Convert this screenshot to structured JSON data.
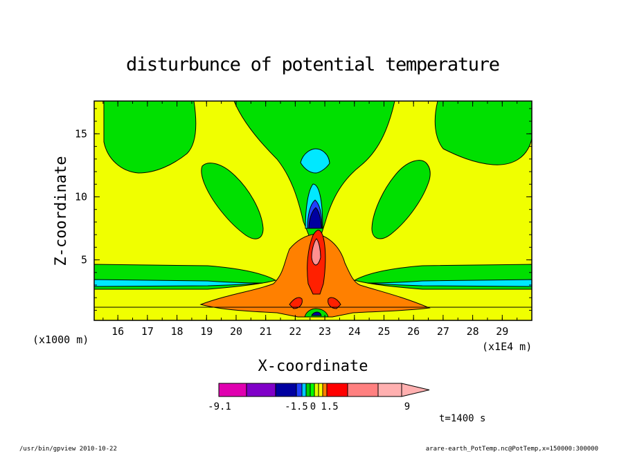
{
  "chart_data": {
    "type": "heatmap",
    "title": "disturbunce of potential temperature",
    "xlabel": "X-coordinate",
    "ylabel": "Z-coordinate",
    "x_unit_left": "(x1000 m)",
    "x_unit_right": "(x1E4 m)",
    "xlim": [
      15.2,
      30.0
    ],
    "ylim": [
      0.2,
      17.6
    ],
    "x_ticks": [
      "16",
      "17",
      "18",
      "19",
      "20",
      "21",
      "22",
      "23",
      "24",
      "25",
      "26",
      "27",
      "28",
      "29"
    ],
    "y_ticks": [
      "5",
      "10",
      "15"
    ],
    "colorbar": {
      "labels": [
        "-9.1",
        "-1.5",
        "0",
        "1.5",
        "9"
      ],
      "colors": [
        "#e000b0",
        "#8000c8",
        "#0000a0",
        "#2040ff",
        "#00c8ff",
        "#00d000",
        "#00ff00",
        "#e0ff00",
        "#ffff00",
        "#ff8000",
        "#ff0000",
        "#ff8080",
        "#ffb0b0"
      ]
    },
    "colors": {
      "background_field": "#f0ff00",
      "negative_small": "#00e000",
      "negative_medium": "#00e8ff",
      "negative_large": "#0000a0",
      "positive_small": "#ff8000",
      "positive_medium": "#ff2000",
      "positive_large": "#ff9090"
    }
  },
  "time_label": "t=1400 s",
  "footer_left": "/usr/bin/gpview   2010-10-22",
  "footer_right": "arare-earth_PotTemp.nc@PotTemp,x=150000:300000"
}
